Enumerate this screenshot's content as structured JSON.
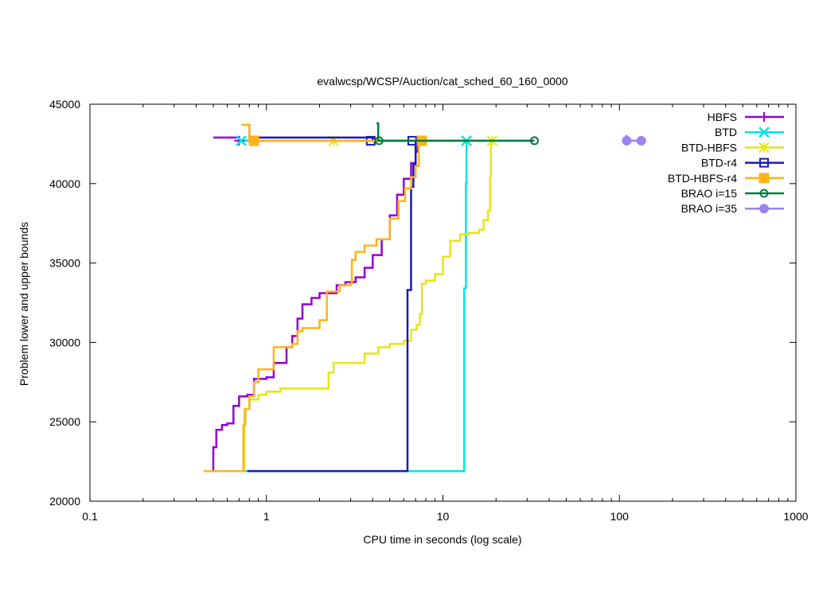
{
  "chart_data": {
    "type": "line",
    "title": "evalwcsp/WCSP/Auction/cat_sched_60_160_0000",
    "xlabel": "CPU time in seconds (log scale)",
    "ylabel": "Problem lower and upper bounds",
    "xscale": "log",
    "xlim": [
      0.1,
      1000
    ],
    "ylim": [
      20000,
      45000
    ],
    "xticks": [
      "0.1",
      "1",
      "10",
      "100",
      "1000"
    ],
    "yticks": [
      "20000",
      "25000",
      "30000",
      "35000",
      "40000",
      "45000"
    ],
    "grid": false,
    "legend_position": "top-right",
    "series": [
      {
        "name": "HBFS",
        "color": "#9400d3",
        "marker": "plus",
        "lower": [
          [
            0.5,
            21900
          ],
          [
            0.5,
            23400
          ],
          [
            0.52,
            24500
          ],
          [
            0.56,
            24800
          ],
          [
            0.6,
            24900
          ],
          [
            0.65,
            26000
          ],
          [
            0.7,
            26600
          ],
          [
            0.78,
            26700
          ],
          [
            0.85,
            27700
          ],
          [
            1.0,
            27800
          ],
          [
            1.1,
            28700
          ],
          [
            1.3,
            29700
          ],
          [
            1.4,
            30400
          ],
          [
            1.5,
            31500
          ],
          [
            1.6,
            32400
          ],
          [
            1.8,
            32800
          ],
          [
            2.0,
            33100
          ],
          [
            2.5,
            33600
          ],
          [
            2.8,
            33800
          ],
          [
            3.2,
            34100
          ],
          [
            3.6,
            34700
          ],
          [
            4.0,
            35500
          ],
          [
            4.5,
            36500
          ],
          [
            5.0,
            38000
          ],
          [
            5.5,
            39300
          ],
          [
            6.0,
            40300
          ],
          [
            6.6,
            41300
          ],
          [
            7.0,
            42000
          ],
          [
            7.2,
            42700
          ]
        ],
        "upper": [
          [
            0.5,
            42900
          ],
          [
            0.62,
            42900
          ],
          [
            0.7,
            42700
          ],
          [
            7.2,
            42700
          ]
        ],
        "markers": [
          [
            0.7,
            42700
          ]
        ]
      },
      {
        "name": "BTD",
        "color": "#00e5e5",
        "marker": "x",
        "lower": [
          [
            0.75,
            21900
          ],
          [
            13.0,
            21900
          ],
          [
            13.2,
            33400
          ],
          [
            13.5,
            40000
          ],
          [
            13.6,
            42700
          ]
        ],
        "upper": [
          [
            0.75,
            42700
          ],
          [
            13.6,
            42700
          ]
        ],
        "markers": [
          [
            0.72,
            42700
          ],
          [
            13.6,
            42700
          ]
        ]
      },
      {
        "name": "BTD-HBFS",
        "color": "#e5e51a",
        "marker": "star",
        "lower": [
          [
            0.75,
            21900
          ],
          [
            0.75,
            25800
          ],
          [
            0.8,
            26400
          ],
          [
            0.9,
            26700
          ],
          [
            1.0,
            26900
          ],
          [
            1.2,
            27100
          ],
          [
            2.2,
            27100
          ],
          [
            2.25,
            28100
          ],
          [
            2.4,
            28700
          ],
          [
            3.5,
            28700
          ],
          [
            3.6,
            29300
          ],
          [
            4.3,
            29700
          ],
          [
            5.0,
            29900
          ],
          [
            6.0,
            30100
          ],
          [
            6.6,
            30800
          ],
          [
            7.1,
            31100
          ],
          [
            7.4,
            31800
          ],
          [
            7.6,
            33700
          ],
          [
            8.0,
            33900
          ],
          [
            9.0,
            34300
          ],
          [
            10.0,
            35400
          ],
          [
            11.0,
            36400
          ],
          [
            12.5,
            36800
          ],
          [
            14.0,
            36900
          ],
          [
            16.0,
            37100
          ],
          [
            17.0,
            37700
          ],
          [
            18.0,
            38300
          ],
          [
            18.5,
            40400
          ],
          [
            18.7,
            42700
          ]
        ],
        "upper": [
          [
            2.4,
            42700
          ],
          [
            18.7,
            42700
          ]
        ],
        "markers": [
          [
            2.4,
            42700
          ],
          [
            19.0,
            42700
          ]
        ]
      },
      {
        "name": "BTD-r4",
        "color": "#1a1ab8",
        "marker": "square",
        "lower": [
          [
            0.78,
            21900
          ],
          [
            6.3,
            21900
          ],
          [
            6.3,
            33300
          ],
          [
            6.6,
            33300
          ],
          [
            6.6,
            39800
          ],
          [
            6.8,
            41200
          ],
          [
            7.0,
            42700
          ]
        ],
        "upper": [
          [
            0.78,
            43700
          ],
          [
            0.8,
            42900
          ],
          [
            3.9,
            42900
          ],
          [
            4.0,
            42700
          ],
          [
            7.0,
            42700
          ]
        ],
        "markers": [
          [
            3.9,
            42700
          ],
          [
            6.7,
            42700
          ]
        ]
      },
      {
        "name": "BTD-HBFS-r4",
        "color": "#ffb31a",
        "marker": "filled-square",
        "lower": [
          [
            0.44,
            21900
          ],
          [
            0.74,
            21900
          ],
          [
            0.74,
            24800
          ],
          [
            0.76,
            25800
          ],
          [
            0.8,
            26600
          ],
          [
            0.85,
            27500
          ],
          [
            0.9,
            28300
          ],
          [
            1.1,
            28300
          ],
          [
            1.1,
            29700
          ],
          [
            1.4,
            29900
          ],
          [
            1.5,
            30700
          ],
          [
            1.6,
            30900
          ],
          [
            2.0,
            31400
          ],
          [
            2.2,
            31600
          ],
          [
            2.2,
            33200
          ],
          [
            2.6,
            33600
          ],
          [
            3.0,
            33700
          ],
          [
            3.05,
            35200
          ],
          [
            3.2,
            35700
          ],
          [
            3.6,
            36100
          ],
          [
            4.2,
            36500
          ],
          [
            5.0,
            37800
          ],
          [
            5.6,
            38900
          ],
          [
            6.1,
            39700
          ],
          [
            6.6,
            40400
          ],
          [
            7.0,
            41100
          ],
          [
            7.3,
            42700
          ]
        ],
        "upper": [
          [
            0.72,
            43700
          ],
          [
            0.78,
            43700
          ],
          [
            0.8,
            42700
          ],
          [
            7.5,
            42700
          ]
        ],
        "markers": [
          [
            0.85,
            42700
          ],
          [
            7.6,
            42700
          ]
        ]
      },
      {
        "name": "BRAO i=15",
        "color": "#007a3d",
        "marker": "circle",
        "lower": [],
        "upper": [
          [
            4.2,
            43800
          ],
          [
            4.3,
            42700
          ],
          [
            33.0,
            42700
          ]
        ],
        "markers": [
          [
            4.35,
            42700
          ],
          [
            33.0,
            42700
          ]
        ]
      },
      {
        "name": "BRAO i=35",
        "color": "#9b84ee",
        "marker": "filled-circle",
        "lower": [],
        "upper": [
          [
            108,
            43000
          ],
          [
            110,
            42700
          ],
          [
            133,
            42700
          ]
        ],
        "markers": [
          [
            110,
            42700
          ],
          [
            133,
            42700
          ]
        ]
      }
    ]
  }
}
